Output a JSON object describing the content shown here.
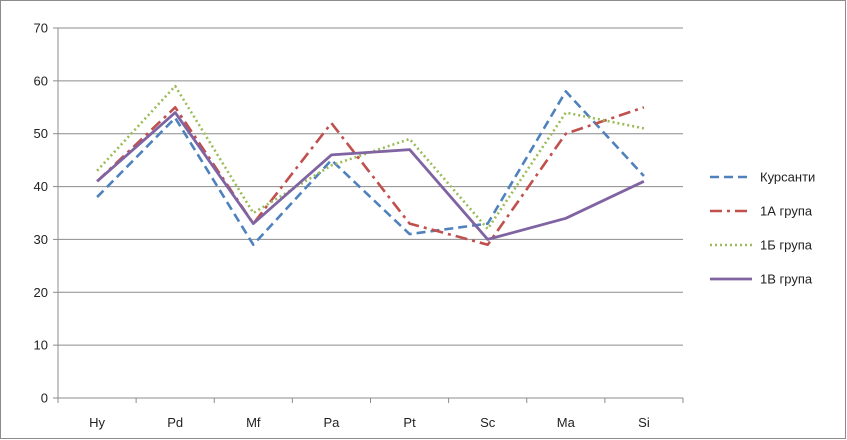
{
  "chart_data": {
    "type": "line",
    "title": "",
    "xlabel": "",
    "ylabel": "",
    "categories": [
      "Hy",
      "Pd",
      "Mf",
      "Pa",
      "Pt",
      "Sc",
      "Ma",
      "Si"
    ],
    "ylim": [
      0,
      70
    ],
    "yticks": [
      0,
      10,
      20,
      30,
      40,
      50,
      60,
      70
    ],
    "grid": "horizontal",
    "legend_position": "right",
    "series": [
      {
        "name": "Курсанти",
        "values": [
          38,
          53,
          29,
          45,
          31,
          33,
          58,
          42
        ],
        "color": "#4f81bd",
        "dash": "dashed"
      },
      {
        "name": "1А група",
        "values": [
          41,
          55,
          33,
          52,
          33,
          29,
          50,
          55
        ],
        "color": "#c0504d",
        "dash": "dashdot"
      },
      {
        "name": "1Б група",
        "values": [
          43,
          59,
          35,
          44,
          49,
          32,
          54,
          51
        ],
        "color": "#9bbb59",
        "dash": "dotted"
      },
      {
        "name": "1В група",
        "values": [
          41,
          54,
          33,
          46,
          47,
          30,
          34,
          41
        ],
        "color": "#8064a2",
        "dash": "solid"
      }
    ]
  }
}
